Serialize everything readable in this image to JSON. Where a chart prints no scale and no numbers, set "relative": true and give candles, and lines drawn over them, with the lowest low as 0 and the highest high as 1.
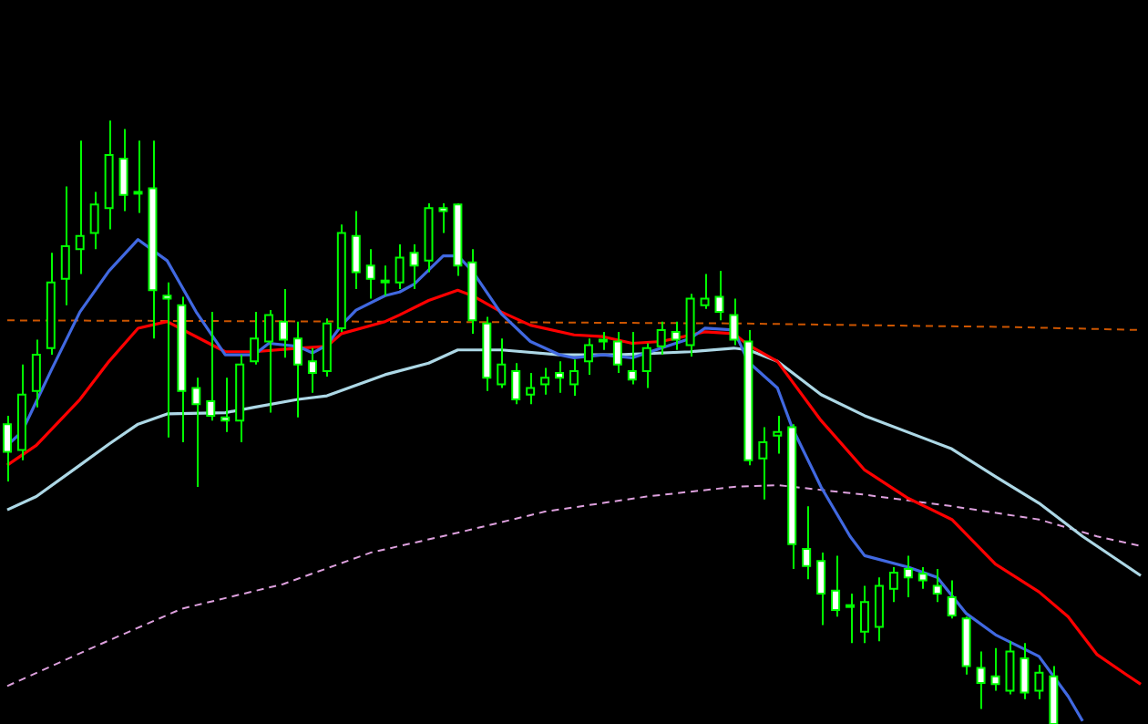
{
  "chart_data": {
    "type": "candlestick",
    "relative": true,
    "tick_labels": false,
    "colors": [
      "#ffffff",
      "#000000",
      "#000000",
      "#000000",
      "#000000",
      "#000000",
      "#000000",
      "#000000",
      "#ffffff",
      "#ffffff",
      "#ffffff",
      "#ffffff",
      "#ffffff",
      "#ffffff",
      "#ffffff",
      "#ffffff",
      "#000000",
      "#000000",
      "#000000",
      "#ffffff",
      "#ffffff",
      "#ffffff",
      "#000000",
      "#000000",
      "#ffffff",
      "#ffffff",
      "#ffffff",
      "#000000",
      "#ffffff",
      "#000000",
      "#ffffff",
      "#ffffff",
      "#ffffff",
      "#ffffff",
      "#000000",
      "#ffffff",
      "#000000",
      "#000000",
      "#ffffff",
      "#000000",
      "#000000",
      "#ffffff",
      "#ffffff",
      "#ffffff",
      "#000000",
      "#000000",
      "#ffffff",
      "#000000",
      "#000000",
      "#ffffff",
      "#ffffff",
      "#ffffff",
      "#000000",
      "#000000",
      "#ffffff",
      "#ffffff",
      "#ffffff",
      "#ffffff",
      "#ffffff",
      "#000000",
      "#000000",
      "#000000",
      "#ffffff",
      "#ffffff",
      "#ffffff",
      "#ffffff",
      "#ffffff",
      "#ffffff",
      "#ffffff",
      "#000000",
      "#ffffff",
      "#000000",
      "#ffffff",
      null,
      null,
      null,
      null,
      null,
      null
    ],
    "categories": [
      null,
      null,
      null,
      null,
      null,
      null,
      null,
      null,
      null,
      null,
      null,
      null,
      null,
      null,
      null,
      null,
      null,
      null,
      null,
      null,
      null,
      null,
      null,
      null,
      null,
      null,
      null,
      null,
      null,
      null,
      null,
      null,
      null,
      null,
      null,
      null,
      null,
      null,
      null,
      null,
      null,
      null,
      null,
      null,
      null,
      null,
      null,
      null,
      null,
      null,
      null,
      null,
      null,
      null,
      null,
      null,
      null,
      null,
      null,
      null,
      null,
      null,
      null,
      null,
      null,
      null,
      null,
      null,
      null,
      null,
      null,
      null,
      null,
      null,
      null,
      null,
      null,
      null,
      null
    ],
    "ohlc": [
      [
        0.497,
        0.511,
        0.402,
        0.451
      ],
      [
        0.454,
        0.596,
        0.437,
        0.546
      ],
      [
        0.552,
        0.637,
        0.525,
        0.612
      ],
      [
        0.623,
        0.781,
        0.612,
        0.732
      ],
      [
        0.738,
        0.891,
        0.694,
        0.792
      ],
      [
        0.787,
        0.967,
        0.746,
        0.809
      ],
      [
        0.814,
        0.882,
        0.787,
        0.861
      ],
      [
        0.855,
        1.0,
        0.82,
        0.943
      ],
      [
        0.937,
        0.986,
        0.85,
        0.877
      ],
      [
        0.882,
        0.967,
        0.847,
        0.88
      ],
      [
        0.888,
        0.967,
        0.639,
        0.719
      ],
      [
        0.71,
        0.732,
        0.475,
        0.705
      ],
      [
        0.694,
        0.708,
        0.467,
        0.552
      ],
      [
        0.557,
        0.574,
        0.393,
        0.53
      ],
      [
        0.535,
        0.683,
        0.503,
        0.511
      ],
      [
        0.508,
        0.574,
        0.484,
        0.503
      ],
      [
        0.503,
        0.612,
        0.467,
        0.596
      ],
      [
        0.601,
        0.683,
        0.596,
        0.639
      ],
      [
        0.634,
        0.686,
        0.516,
        0.678
      ],
      [
        0.667,
        0.721,
        0.607,
        0.637
      ],
      [
        0.639,
        0.667,
        0.508,
        0.596
      ],
      [
        0.601,
        0.623,
        0.549,
        0.582
      ],
      [
        0.585,
        0.672,
        0.576,
        0.664
      ],
      [
        0.656,
        0.828,
        0.65,
        0.814
      ],
      [
        0.809,
        0.85,
        0.721,
        0.749
      ],
      [
        0.76,
        0.787,
        0.705,
        0.738
      ],
      [
        0.735,
        0.76,
        0.71,
        0.732
      ],
      [
        0.732,
        0.795,
        0.721,
        0.773
      ],
      [
        0.781,
        0.795,
        0.721,
        0.76
      ],
      [
        0.768,
        0.863,
        0.749,
        0.855
      ],
      [
        0.855,
        0.863,
        0.814,
        0.85
      ],
      [
        0.861,
        0.863,
        0.743,
        0.76
      ],
      [
        0.765,
        0.787,
        0.647,
        0.669
      ],
      [
        0.664,
        0.675,
        0.552,
        0.574
      ],
      [
        0.563,
        0.639,
        0.557,
        0.596
      ],
      [
        0.585,
        0.598,
        0.53,
        0.538
      ],
      [
        0.546,
        0.582,
        0.53,
        0.557
      ],
      [
        0.563,
        0.59,
        0.546,
        0.574
      ],
      [
        0.582,
        0.601,
        0.549,
        0.574
      ],
      [
        0.563,
        0.604,
        0.544,
        0.585
      ],
      [
        0.601,
        0.639,
        0.579,
        0.628
      ],
      [
        0.637,
        0.65,
        0.62,
        0.634
      ],
      [
        0.634,
        0.65,
        0.582,
        0.596
      ],
      [
        0.585,
        0.65,
        0.563,
        0.571
      ],
      [
        0.585,
        0.631,
        0.557,
        0.623
      ],
      [
        0.626,
        0.667,
        0.612,
        0.653
      ],
      [
        0.65,
        0.667,
        0.62,
        0.637
      ],
      [
        0.628,
        0.713,
        0.609,
        0.705
      ],
      [
        0.694,
        0.746,
        0.688,
        0.705
      ],
      [
        0.708,
        0.751,
        0.669,
        0.683
      ],
      [
        0.678,
        0.705,
        0.628,
        0.637
      ],
      [
        0.634,
        0.653,
        0.429,
        0.437
      ],
      [
        0.44,
        0.492,
        0.372,
        0.467
      ],
      [
        0.478,
        0.511,
        0.448,
        0.484
      ],
      [
        0.492,
        0.497,
        0.257,
        0.298
      ],
      [
        0.29,
        0.361,
        0.24,
        0.262
      ],
      [
        0.27,
        0.284,
        0.164,
        0.216
      ],
      [
        0.221,
        0.279,
        0.178,
        0.189
      ],
      [
        0.197,
        0.216,
        0.134,
        0.194
      ],
      [
        0.153,
        0.229,
        0.134,
        0.202
      ],
      [
        0.161,
        0.243,
        0.137,
        0.229
      ],
      [
        0.224,
        0.26,
        0.202,
        0.251
      ],
      [
        0.257,
        0.279,
        0.21,
        0.243
      ],
      [
        0.249,
        0.26,
        0.224,
        0.238
      ],
      [
        0.229,
        0.257,
        0.202,
        0.216
      ],
      [
        0.21,
        0.238,
        0.175,
        0.18
      ],
      [
        0.175,
        0.178,
        0.082,
        0.096
      ],
      [
        0.093,
        0.12,
        0.025,
        0.068
      ],
      [
        0.079,
        0.126,
        0.055,
        0.066
      ],
      [
        0.055,
        0.137,
        0.049,
        0.12
      ],
      [
        0.109,
        0.134,
        0.041,
        0.052
      ],
      [
        0.055,
        0.098,
        0.041,
        0.085
      ],
      [
        0.079,
        0.096,
        0.0,
        0.0
      ],
      null,
      null,
      null,
      null,
      null,
      null
    ],
    "series": [
      {
        "type": "line",
        "color": "#4169e1",
        "values": [
          0.462,
          0.484,
          null,
          0.585,
          null,
          0.683,
          null,
          0.751,
          null,
          0.803,
          null,
          0.768,
          null,
          0.683,
          null,
          0.612,
          null,
          0.612,
          0.631,
          null,
          0.626,
          0.615,
          0.628,
          0.661,
          0.686,
          null,
          0.71,
          0.716,
          0.729,
          null,
          0.776,
          0.776,
          0.751,
          null,
          0.68,
          null,
          0.634,
          null,
          0.612,
          0.607,
          null,
          0.612,
          null,
          0.607,
          null,
          0.623,
          null,
          0.639,
          0.656,
          null,
          0.653,
          0.6,
          null,
          0.557,
          0.492,
          null,
          0.393,
          null,
          0.311,
          0.279,
          null,
          null,
          0.26,
          null,
          0.243,
          null,
          0.183,
          null,
          0.148,
          null,
          null,
          0.112,
          null,
          0.046,
          0.005,
          null,
          null,
          null,
          null
        ]
      },
      {
        "type": "line",
        "color": "#ff0000",
        "values": [
          0.429,
          null,
          0.462,
          null,
          null,
          0.538,
          null,
          0.601,
          null,
          0.656,
          null,
          0.667,
          null,
          0.642,
          null,
          0.617,
          null,
          0.617,
          null,
          null,
          0.623,
          null,
          0.626,
          0.647,
          null,
          null,
          0.667,
          0.678,
          null,
          0.702,
          null,
          0.719,
          0.71,
          null,
          0.683,
          null,
          0.661,
          null,
          null,
          0.645,
          null,
          0.642,
          null,
          0.631,
          null,
          0.634,
          null,
          null,
          0.65,
          null,
          0.647,
          0.628,
          null,
          0.601,
          null,
          null,
          0.503,
          null,
          null,
          0.421,
          null,
          null,
          0.374,
          null,
          null,
          0.339,
          null,
          null,
          0.265,
          null,
          null,
          0.219,
          null,
          0.178,
          null,
          0.115,
          null,
          0.082,
          0.066
        ]
      },
      {
        "type": "line",
        "color": "#add8e6",
        "values": [
          0.355,
          null,
          0.377,
          null,
          null,
          0.429,
          null,
          0.464,
          null,
          0.497,
          null,
          0.514,
          null,
          null,
          null,
          0.516,
          null,
          0.525,
          null,
          null,
          0.538,
          null,
          0.544,
          null,
          null,
          null,
          0.579,
          null,
          null,
          0.598,
          null,
          0.62,
          null,
          null,
          0.62,
          null,
          null,
          null,
          0.612,
          null,
          null,
          null,
          0.612,
          null,
          null,
          null,
          null,
          0.617,
          null,
          null,
          0.623,
          0.62,
          null,
          0.601,
          null,
          null,
          0.546,
          null,
          null,
          0.511,
          null,
          null,
          null,
          null,
          null,
          0.456,
          null,
          null,
          0.41,
          null,
          null,
          0.366,
          null,
          null,
          0.311,
          null,
          null,
          null,
          0.246
        ]
      },
      {
        "type": "line",
        "color": "#dda0dd",
        "line_style": "dashed",
        "values": [
          0.063,
          null,
          null,
          null,
          null,
          null,
          0.128,
          null,
          null,
          null,
          null,
          null,
          0.191,
          null,
          null,
          null,
          null,
          null,
          null,
          0.232,
          null,
          null,
          null,
          null,
          null,
          0.284,
          null,
          null,
          null,
          null,
          null,
          0.317,
          null,
          null,
          null,
          null,
          null,
          0.352,
          null,
          null,
          null,
          null,
          null,
          null,
          0.377,
          null,
          null,
          null,
          null,
          null,
          0.393,
          null,
          null,
          0.396,
          null,
          null,
          null,
          null,
          null,
          0.38,
          null,
          null,
          null,
          null,
          null,
          0.361,
          null,
          null,
          null,
          null,
          null,
          0.339,
          null,
          null,
          null,
          0.311,
          null,
          null,
          0.295
        ]
      },
      {
        "type": "line",
        "color": "#cc5500",
        "line_style": "dashed",
        "values": [
          0.669,
          null,
          null,
          null,
          null,
          null,
          null,
          null,
          null,
          null,
          null,
          null,
          null,
          null,
          null,
          null,
          null,
          null,
          null,
          null,
          null,
          null,
          null,
          null,
          null,
          0.667,
          null,
          null,
          null,
          null,
          null,
          null,
          null,
          null,
          null,
          null,
          null,
          null,
          null,
          null,
          null,
          null,
          null,
          null,
          null,
          null,
          null,
          null,
          null,
          null,
          0.664,
          null,
          null,
          null,
          null,
          null,
          null,
          null,
          null,
          0.661,
          null,
          null,
          null,
          null,
          null,
          null,
          null,
          null,
          null,
          0.658,
          null,
          null,
          null,
          null,
          null,
          null,
          null,
          null,
          0.653
        ]
      }
    ]
  }
}
